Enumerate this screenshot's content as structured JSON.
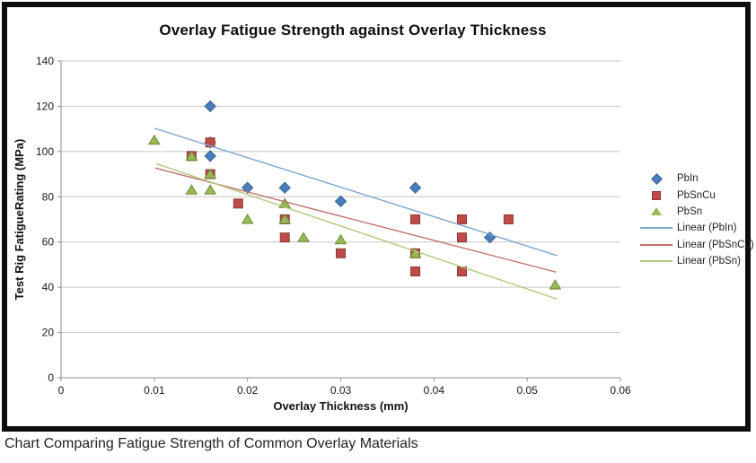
{
  "caption": "Chart Comparing Fatigue Strength of Common Overlay Materials",
  "chart": {
    "title": "Overlay Fatigue Strength against Overlay Thickness",
    "x_title": "Overlay Thickness (mm)",
    "y_title": "Test Rig FatigueRating (MPa)"
  },
  "legend": {
    "items": [
      {
        "label": "PbIn",
        "glyph": "diamond-marker"
      },
      {
        "label": "PbSnCu",
        "glyph": "square-marker"
      },
      {
        "label": "PbSn",
        "glyph": "triangle-marker"
      },
      {
        "label": "Linear (PbIn)",
        "glyph": "blue-line"
      },
      {
        "label": "Linear (PbSnCu)",
        "glyph": "red-line"
      },
      {
        "label": "Linear (PbSn)",
        "glyph": "olive-line"
      }
    ]
  },
  "chart_data": {
    "type": "scatter",
    "title": "Overlay Fatigue Strength against Overlay Thickness",
    "xlabel": "Overlay Thickness (mm)",
    "ylabel": "Test Rig FatigueRating (MPa)",
    "xlim": [
      0,
      0.06
    ],
    "ylim": [
      0,
      140
    ],
    "x_ticks": [
      "0",
      "0.01",
      "0.02",
      "0.03",
      "0.04",
      "0.05",
      "0.06"
    ],
    "y_ticks": [
      "0",
      "20",
      "40",
      "60",
      "80",
      "100",
      "120",
      "140"
    ],
    "grid": "horizontal",
    "legend_position": "right",
    "colors": {
      "grid": "#C6C6C6",
      "axis": "#8E8E8E",
      "tick_text": "#1a1a1a",
      "pbin": "#4A7EBB",
      "pbin_border": "#36618F",
      "pbsncu": "#BE4B48",
      "pbsncu_border": "#8C3836",
      "pbsn": "#98B954",
      "pbsn_border": "#6E8B3D",
      "trend_pbin": "#7EA6D0",
      "trend_pbsncu": "#C0706E",
      "trend_pbsn": "#AFC97A"
    },
    "series": [
      {
        "name": "PbIn",
        "marker": "diamond",
        "points": [
          [
            0.016,
            120
          ],
          [
            0.016,
            104
          ],
          [
            0.016,
            98
          ],
          [
            0.02,
            84
          ],
          [
            0.024,
            84
          ],
          [
            0.03,
            78
          ],
          [
            0.038,
            84
          ],
          [
            0.046,
            62
          ]
        ]
      },
      {
        "name": "PbSnCu",
        "marker": "square",
        "points": [
          [
            0.014,
            98
          ],
          [
            0.016,
            104
          ],
          [
            0.016,
            90
          ],
          [
            0.019,
            77
          ],
          [
            0.024,
            70
          ],
          [
            0.024,
            62
          ],
          [
            0.03,
            55
          ],
          [
            0.038,
            70
          ],
          [
            0.038,
            55
          ],
          [
            0.038,
            47
          ],
          [
            0.043,
            70
          ],
          [
            0.043,
            62
          ],
          [
            0.043,
            47
          ],
          [
            0.048,
            70
          ]
        ]
      },
      {
        "name": "PbSn",
        "marker": "triangle",
        "points": [
          [
            0.01,
            105
          ],
          [
            0.014,
            98
          ],
          [
            0.014,
            83
          ],
          [
            0.016,
            90
          ],
          [
            0.016,
            83
          ],
          [
            0.02,
            70
          ],
          [
            0.024,
            77
          ],
          [
            0.024,
            70
          ],
          [
            0.026,
            62
          ],
          [
            0.03,
            61
          ],
          [
            0.038,
            55
          ],
          [
            0.053,
            41
          ]
        ]
      }
    ],
    "trendlines": [
      {
        "name": "Linear (PbIn)",
        "from": [
          0.01,
          110.3
        ],
        "to": [
          0.0532,
          54.0
        ]
      },
      {
        "name": "Linear (PbSnCu)",
        "from": [
          0.0101,
          92.7
        ],
        "to": [
          0.0531,
          46.7
        ]
      },
      {
        "name": "Linear (PbSn)",
        "from": [
          0.0102,
          94.6
        ],
        "to": [
          0.0532,
          34.8
        ]
      }
    ]
  }
}
